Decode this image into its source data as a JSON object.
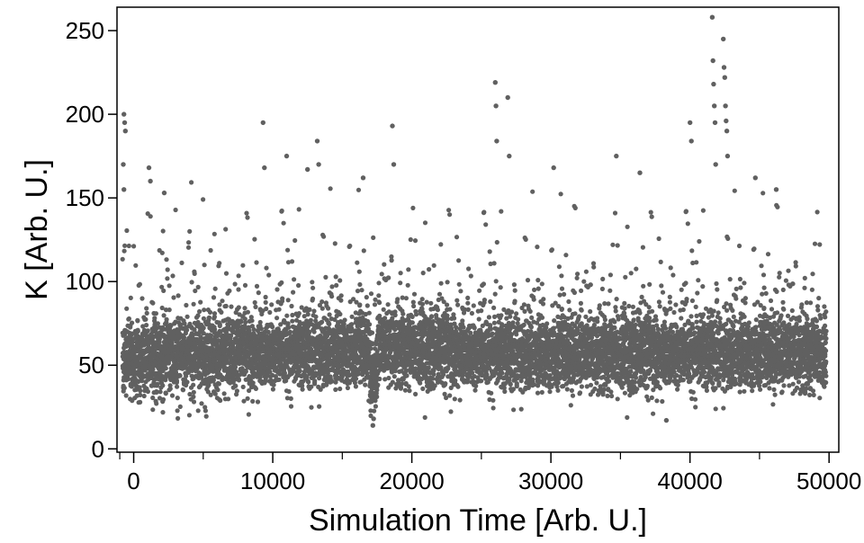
{
  "chart_data": {
    "type": "scatter",
    "title": "",
    "xlabel": "Simulation Time [Arb. U.]",
    "ylabel": "K  [Arb. U.]",
    "xlim": [
      -1200,
      50700
    ],
    "ylim": [
      -2,
      264
    ],
    "x_ticks": [
      0,
      10000,
      20000,
      30000,
      40000,
      50000
    ],
    "x_minor_ticks": [
      -1000,
      5000,
      15000,
      25000,
      35000,
      45000
    ],
    "y_ticks": [
      0,
      50,
      100,
      150,
      200,
      250
    ],
    "grid": false,
    "legend": "none",
    "marker_color": "#606060",
    "sampling": {
      "x_start": -800,
      "x_end": 49800,
      "count": 9000
    },
    "baseline_segments": [
      {
        "x_range": [
          -800,
          17000
        ],
        "mean_range": [
          54,
          60
        ]
      },
      {
        "x_range": [
          17000,
          17500
        ],
        "mean_range": [
          36,
          44
        ]
      },
      {
        "x_range": [
          17500,
          24000
        ],
        "mean_range": [
          62,
          58
        ]
      },
      {
        "x_range": [
          24000,
          50000
        ],
        "mean_range": [
          57,
          58
        ]
      }
    ],
    "notable_points": [
      {
        "x": -700,
        "y": 200
      },
      {
        "x": -650,
        "y": 195
      },
      {
        "x": -600,
        "y": 190
      },
      {
        "x": -750,
        "y": 170
      },
      {
        "x": -700,
        "y": 155
      },
      {
        "x": 1100,
        "y": 168
      },
      {
        "x": 1200,
        "y": 160
      },
      {
        "x": 2200,
        "y": 153
      },
      {
        "x": 9300,
        "y": 195
      },
      {
        "x": 9400,
        "y": 168
      },
      {
        "x": 11000,
        "y": 175
      },
      {
        "x": 12500,
        "y": 167
      },
      {
        "x": 13200,
        "y": 184
      },
      {
        "x": 13300,
        "y": 170
      },
      {
        "x": 16500,
        "y": 162
      },
      {
        "x": 18600,
        "y": 193
      },
      {
        "x": 18700,
        "y": 170
      },
      {
        "x": 26000,
        "y": 219
      },
      {
        "x": 26050,
        "y": 205
      },
      {
        "x": 26100,
        "y": 184
      },
      {
        "x": 26900,
        "y": 210
      },
      {
        "x": 27000,
        "y": 175
      },
      {
        "x": 30200,
        "y": 168
      },
      {
        "x": 34700,
        "y": 175
      },
      {
        "x": 36400,
        "y": 165
      },
      {
        "x": 40000,
        "y": 195
      },
      {
        "x": 40100,
        "y": 184
      },
      {
        "x": 41600,
        "y": 258
      },
      {
        "x": 41650,
        "y": 232
      },
      {
        "x": 41700,
        "y": 218
      },
      {
        "x": 41750,
        "y": 205
      },
      {
        "x": 41800,
        "y": 195
      },
      {
        "x": 41850,
        "y": 170
      },
      {
        "x": 42400,
        "y": 245
      },
      {
        "x": 42450,
        "y": 228
      },
      {
        "x": 42500,
        "y": 222
      },
      {
        "x": 42550,
        "y": 205
      },
      {
        "x": 42600,
        "y": 196
      },
      {
        "x": 42650,
        "y": 190
      },
      {
        "x": 42700,
        "y": 175
      },
      {
        "x": 44700,
        "y": 162
      },
      {
        "x": 46200,
        "y": 155
      },
      {
        "x": 17200,
        "y": 14
      },
      {
        "x": 17250,
        "y": 18
      },
      {
        "x": 38300,
        "y": 17
      }
    ]
  }
}
